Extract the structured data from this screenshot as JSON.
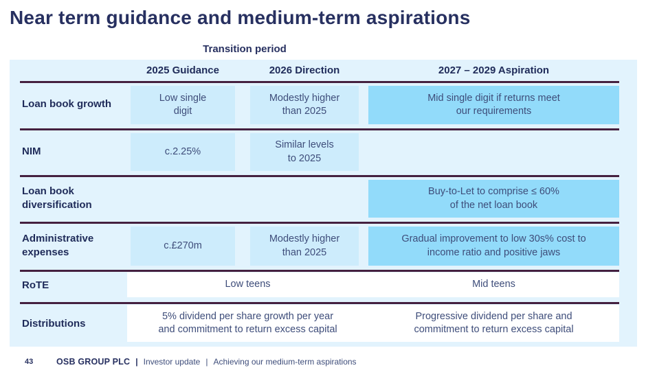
{
  "slide": {
    "title": "Near term guidance and medium-term aspirations"
  },
  "table": {
    "transition_label": "Transition period",
    "headers": {
      "col2025": "2025 Guidance",
      "col2026": "2026 Direction",
      "colAspiration": "2027 – 2029  Aspiration"
    },
    "rows": [
      {
        "label": "Loan book growth",
        "g2025": "Low single\ndigit",
        "d2026": "Modestly higher\nthan 2025",
        "aspiration": "Mid single digit if returns meet\nour requirements"
      },
      {
        "label": "NIM",
        "g2025": "c.2.25%",
        "d2026": "Similar levels\nto 2025"
      },
      {
        "label": "Loan book\ndiversification",
        "aspiration": "Buy-to-Let to comprise ≤ 60%\nof the net loan book"
      },
      {
        "label": "Administrative\nexpenses",
        "g2025": "c.£270m",
        "d2026": "Modestly higher\nthan 2025",
        "aspiration": "Gradual improvement to low 30s% cost to\nincome ratio and positive jaws"
      },
      {
        "label": "RoTE",
        "transition_span": "Low teens",
        "aspiration": "Mid teens"
      },
      {
        "label": "Distributions",
        "transition_span": "5% dividend per share growth per year\nand commitment to return excess capital",
        "aspiration": "Progressive dividend per share and\ncommitment to return excess capital"
      }
    ]
  },
  "footer": {
    "page_number": "43",
    "company": "OSB GROUP PLC",
    "separator1": "|",
    "section": "Investor update",
    "separator2": "|",
    "subtitle": "Achieving our medium-term aspirations"
  },
  "colors": {
    "title_navy": "#273060",
    "label_navy": "#1f2b59",
    "cell_text": "#3e4d7a",
    "row_bg": "#e2f3fd",
    "light_cell": "#cdecfc",
    "medium_cell": "#92dbfa",
    "white_cell": "#ffffff",
    "divider_line": "#44203f"
  }
}
